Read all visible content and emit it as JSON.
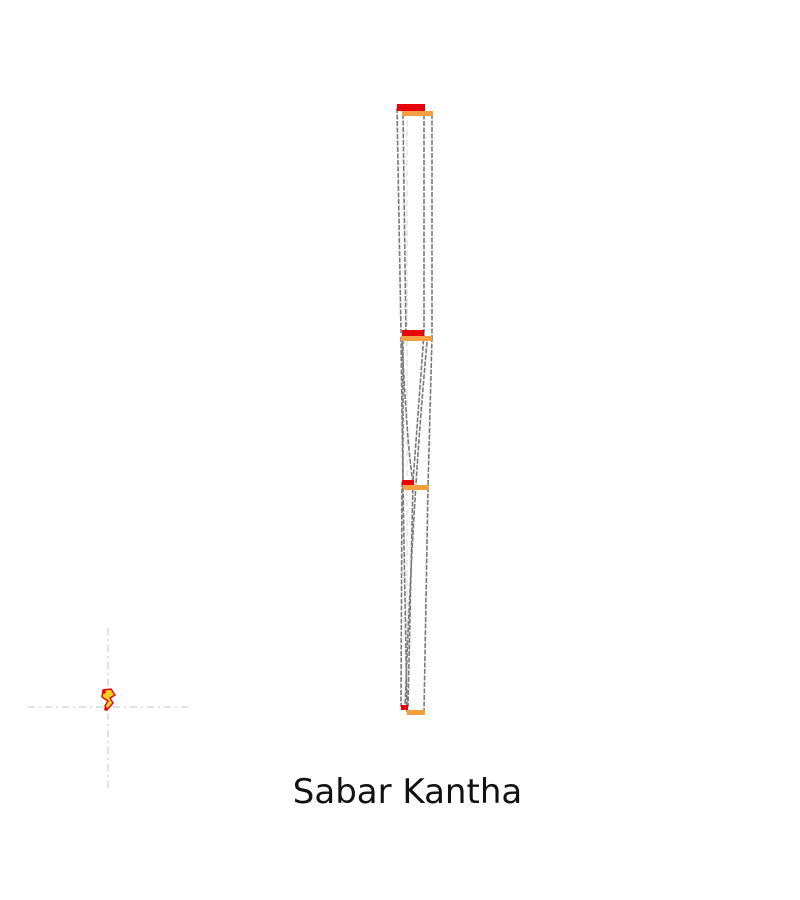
{
  "title": "Sabar Kantha",
  "colors": {
    "red": "#e8000b",
    "orange": "#f5a040",
    "yellow": "#ffd21f",
    "connector": "#7a7a7a",
    "guide": "#cfcfcf"
  },
  "legend_icon": "map-marker-icon"
}
